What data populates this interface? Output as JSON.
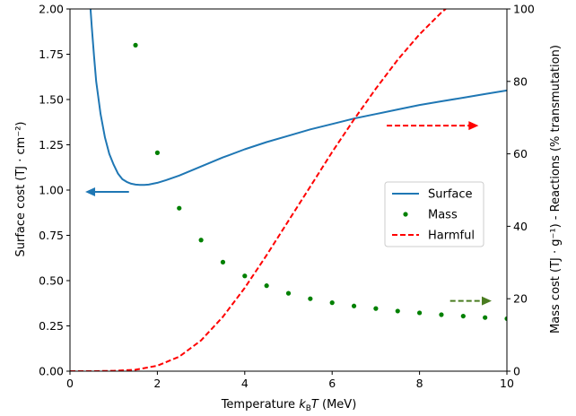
{
  "chart_data": {
    "type": "line",
    "xlabel": "Temperature",
    "xlabel_symbol": "k",
    "xlabel_sub": "B",
    "xlabel_var": "T",
    "xlabel_unit": "(MeV)",
    "ylabel_left": "Surface cost (TJ · cm⁻²)",
    "ylabel_right": "Mass cost (TJ · g⁻¹) - Reactions (% transmutation)",
    "xlim": [
      0,
      10
    ],
    "ylim_left": [
      0,
      2
    ],
    "ylim_right": [
      0,
      100
    ],
    "x_ticks": [
      0,
      2,
      4,
      6,
      8,
      10
    ],
    "y_left_ticks": [
      "0.00",
      "0.25",
      "0.50",
      "0.75",
      "1.00",
      "1.25",
      "1.50",
      "1.75",
      "2.00"
    ],
    "y_right_ticks": [
      0,
      20,
      40,
      60,
      80,
      100
    ],
    "grid": false,
    "legend_position": "center-right",
    "series": [
      {
        "name": "Surface",
        "axis": "left",
        "style": "solid",
        "color": "#1f77b4",
        "x": [
          0.47,
          0.5,
          0.55,
          0.6,
          0.7,
          0.8,
          0.9,
          1.0,
          1.1,
          1.2,
          1.3,
          1.4,
          1.5,
          1.6,
          1.7,
          1.8,
          2.0,
          2.2,
          2.5,
          3.0,
          3.5,
          4.0,
          4.5,
          5.0,
          5.5,
          6.0,
          6.5,
          7.0,
          7.5,
          8.0,
          8.5,
          9.0,
          9.5,
          10.0
        ],
        "y": [
          2.0,
          1.9,
          1.74,
          1.6,
          1.42,
          1.29,
          1.2,
          1.14,
          1.09,
          1.06,
          1.045,
          1.035,
          1.03,
          1.028,
          1.028,
          1.03,
          1.04,
          1.055,
          1.08,
          1.13,
          1.18,
          1.225,
          1.265,
          1.3,
          1.335,
          1.365,
          1.395,
          1.42,
          1.445,
          1.47,
          1.49,
          1.51,
          1.53,
          1.55
        ]
      },
      {
        "name": "Mass",
        "axis": "right",
        "style": "dots",
        "color": "#008000",
        "x": [
          1.5,
          2.0,
          2.5,
          3.0,
          3.5,
          4.0,
          4.5,
          5.0,
          5.5,
          6.0,
          6.5,
          7.0,
          7.5,
          8.0,
          8.5,
          9.0,
          9.5,
          10.0
        ],
        "y": [
          90,
          60.3,
          45,
          36.2,
          30.1,
          26.3,
          23.6,
          21.5,
          20,
          18.9,
          18,
          17.3,
          16.6,
          16.1,
          15.6,
          15.2,
          14.8,
          14.5
        ]
      },
      {
        "name": "Harmful",
        "axis": "right",
        "style": "dashed",
        "color": "#ff0000",
        "x": [
          0,
          0.5,
          1.0,
          1.5,
          2.0,
          2.5,
          3.0,
          3.5,
          4.0,
          4.5,
          5.0,
          5.5,
          6.0,
          6.5,
          7.0,
          7.5,
          8.0,
          8.5,
          8.6
        ],
        "y": [
          0,
          0,
          0.1,
          0.4,
          1.5,
          4,
          8.5,
          15,
          23,
          32,
          41.5,
          51,
          60.5,
          69.5,
          78,
          86,
          93,
          99,
          100
        ]
      }
    ],
    "annotations": [
      {
        "name": "surface-axis-arrow",
        "color": "#1f77b4",
        "style": "solid",
        "x_from": 1.35,
        "x_to": 0.35,
        "axis": "left",
        "y": 0.99
      },
      {
        "name": "harmful-axis-arrow",
        "color": "#ff0000",
        "style": "dashed",
        "x_from": 7.25,
        "x_to": 9.35,
        "axis": "right",
        "y": 67.8
      },
      {
        "name": "mass-axis-arrow",
        "color": "#4a7c20",
        "style": "dashed",
        "x_from": 8.7,
        "x_to": 9.65,
        "axis": "right",
        "y": 19.4
      }
    ]
  }
}
